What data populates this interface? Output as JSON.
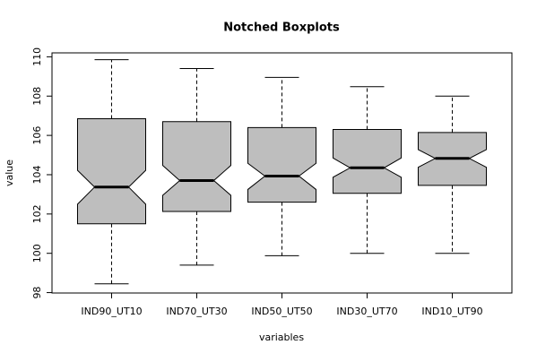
{
  "chart_data": {
    "type": "boxplot",
    "title": "Notched Boxplots",
    "x_label": "variables",
    "y_label": "value",
    "categories": [
      "IND90_UT10",
      "IND70_UT30",
      "IND50_UT50",
      "IND30_UT70",
      "IND10_UT90"
    ],
    "color": "#bebebe",
    "boxes": [
      {
        "min": 98.45,
        "q1": 101.5,
        "notch_lo": 102.5,
        "median": 103.37,
        "notch_hi": 104.22,
        "q3": 106.85,
        "max": 109.85
      },
      {
        "min": 99.4,
        "q1": 102.13,
        "notch_lo": 102.95,
        "median": 103.7,
        "notch_hi": 104.47,
        "q3": 106.7,
        "max": 109.4
      },
      {
        "min": 99.88,
        "q1": 102.6,
        "notch_lo": 103.25,
        "median": 103.93,
        "notch_hi": 104.58,
        "q3": 106.4,
        "max": 108.95
      },
      {
        "min": 100,
        "q1": 103.05,
        "notch_lo": 103.87,
        "median": 104.35,
        "notch_hi": 104.85,
        "q3": 106.3,
        "max": 108.48
      },
      {
        "min": 100,
        "q1": 103.46,
        "notch_lo": 104.38,
        "median": 104.83,
        "notch_hi": 105.28,
        "q3": 106.15,
        "max": 108
      }
    ],
    "ylim": [
      97.98,
      110.2
    ],
    "yticks": [
      98,
      100,
      102,
      104,
      106,
      108,
      110
    ]
  }
}
